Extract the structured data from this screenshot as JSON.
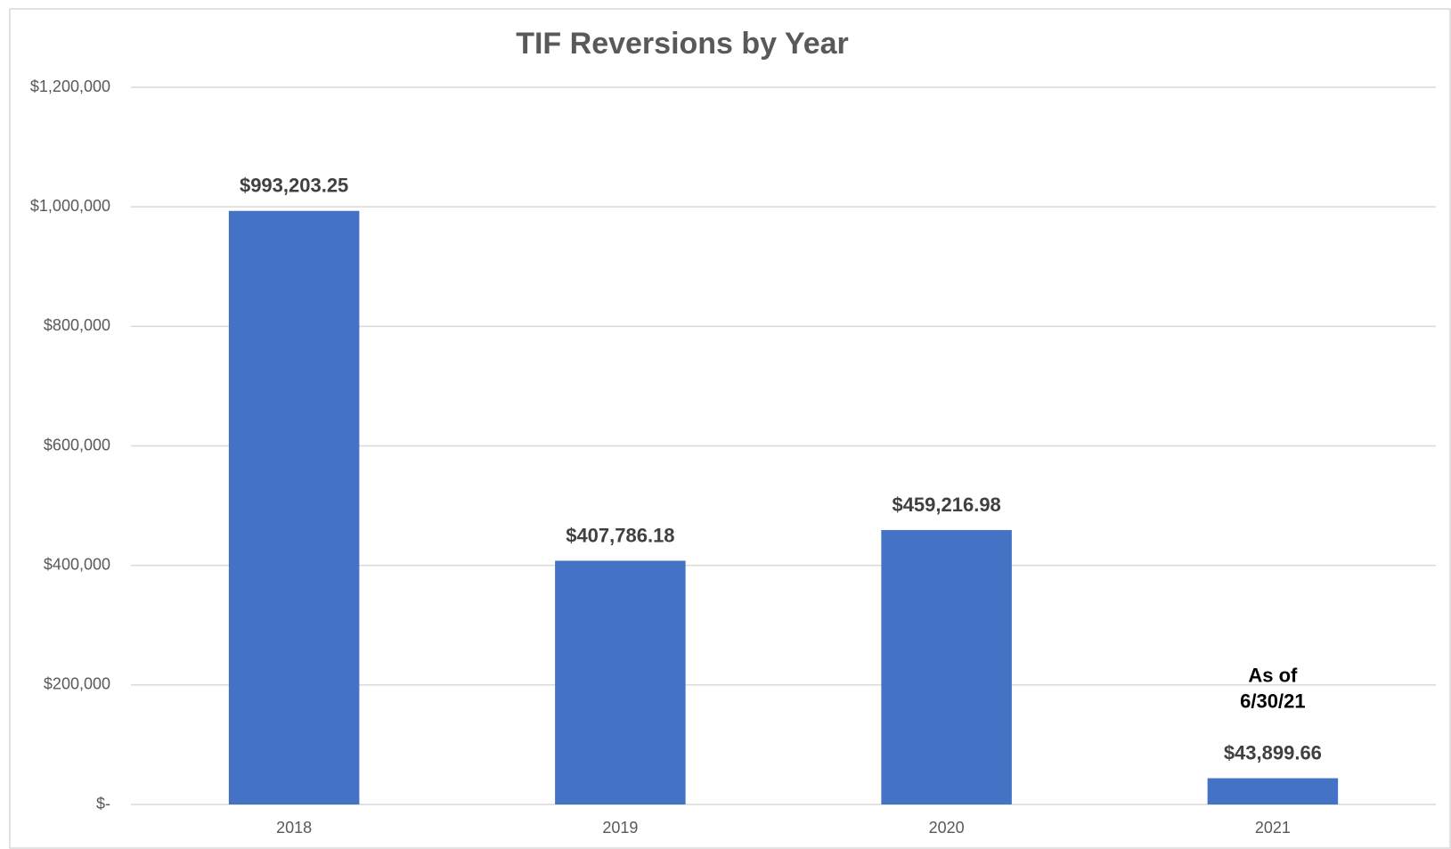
{
  "chart_data": {
    "type": "bar",
    "title": "TIF Reversions by Year",
    "categories": [
      "2018",
      "2019",
      "2020",
      "2021"
    ],
    "values": [
      993203.25,
      407786.18,
      459216.98,
      43899.66
    ],
    "value_labels": [
      "$993,203.25",
      "$407,786.18",
      "$459,216.98",
      "$43,899.66"
    ],
    "color": "#4472c4",
    "ylim": [
      0,
      1200000
    ],
    "yticks": [
      {
        "value": 0,
        "label": "$-"
      },
      {
        "value": 200000,
        "label": "$200,000"
      },
      {
        "value": 400000,
        "label": "$400,000"
      },
      {
        "value": 600000,
        "label": "$600,000"
      },
      {
        "value": 800000,
        "label": "$800,000"
      },
      {
        "value": 1000000,
        "label": "$1,000,000"
      },
      {
        "value": 1200000,
        "label": "$1,200,000"
      }
    ],
    "grid": true,
    "annotation": {
      "category": 3,
      "lines": [
        "As of",
        "6/30/21"
      ]
    }
  }
}
